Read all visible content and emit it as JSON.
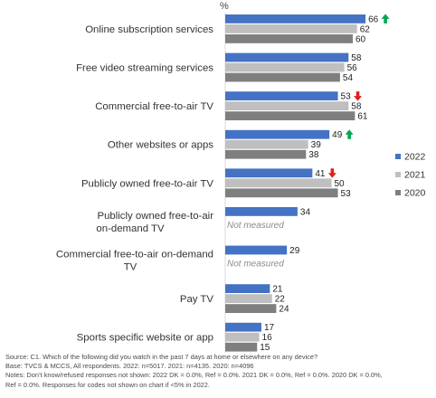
{
  "chart_data": {
    "type": "bar",
    "orientation": "horizontal",
    "unit_label": "%",
    "categories": [
      "Online subscription services",
      "Free video streaming services",
      "Commercial free-to-air TV",
      "Other websites or apps",
      "Publicly owned free-to-air TV",
      "Publicly owned free-to-air on-demand TV",
      "Commercial free-to-air on-demand TV",
      "Pay TV",
      "Sports specific website or app"
    ],
    "series": [
      {
        "name": "2022",
        "color": "#4472c4",
        "values": [
          66,
          58,
          53,
          49,
          41,
          34,
          29,
          21,
          17
        ]
      },
      {
        "name": "2021",
        "color": "#bfbfbf",
        "values": [
          62,
          56,
          58,
          39,
          50,
          null,
          null,
          22,
          16
        ]
      },
      {
        "name": "2020",
        "color": "#7f7f7f",
        "values": [
          60,
          54,
          61,
          38,
          53,
          null,
          null,
          24,
          15
        ]
      }
    ],
    "change_markers": [
      {
        "category": "Online subscription services",
        "direction": "up",
        "color": "#00a651"
      },
      {
        "category": "Commercial free-to-air TV",
        "direction": "down",
        "color": "#e02020"
      },
      {
        "category": "Other websites or apps",
        "direction": "up",
        "color": "#00a651"
      },
      {
        "category": "Publicly owned free-to-air TV",
        "direction": "down",
        "color": "#e02020"
      }
    ],
    "not_measured_text": "Not measured",
    "not_measured_categories": [
      "Publicly owned free-to-air on-demand TV",
      "Commercial free-to-air on-demand TV"
    ],
    "legend_placement": "right",
    "xlim": [
      0,
      100
    ],
    "grid": false
  },
  "notes": {
    "source": "Source: C1. Which of the following did you watch in the past 7 days at home or elsewhere on any device?",
    "base": "Base: TVCS & MCCS, All respondents. 2022: n=5017. 2021: n=4135. 2020: n=4096",
    "notes_line1": "Notes: Don’t know/refused responses not shown: 2022 DK = 0.0%, Ref = 0.0%. 2021 DK = 0.0%, Ref = 0.0%. 2020 DK = 0.0%,",
    "notes_line2": "Ref = 0.0%. Responses for codes not shown on chart if <5% in 2022."
  }
}
